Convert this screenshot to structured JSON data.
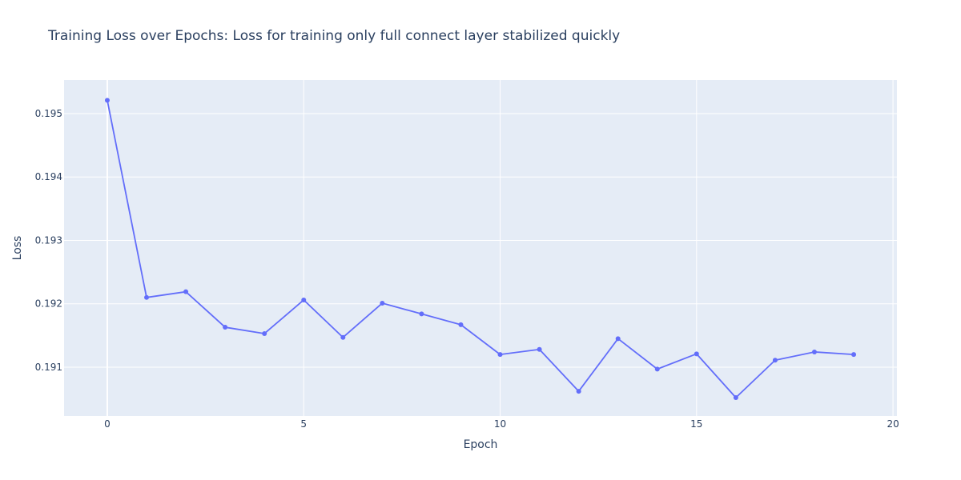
{
  "chart_data": {
    "type": "line",
    "title": "Training Loss over Epochs: Loss for training only full connect layer stabilized quickly",
    "xlabel": "Epoch",
    "ylabel": "Loss",
    "x": [
      0,
      1,
      2,
      3,
      4,
      5,
      6,
      7,
      8,
      9,
      10,
      11,
      12,
      13,
      14,
      15,
      16,
      17,
      18,
      19
    ],
    "series": [
      {
        "values": [
          0.19521,
          0.1921,
          0.19219,
          0.19163,
          0.19153,
          0.19206,
          0.19147,
          0.19201,
          0.19184,
          0.19167,
          0.1912,
          0.19128,
          0.19062,
          0.19145,
          0.19097,
          0.19121,
          0.19052,
          0.19111,
          0.19124,
          0.1912
        ],
        "color": "#636efa"
      }
    ],
    "xlim": [
      -1.1,
      20.1
    ],
    "ylim": [
      0.19023,
      0.19553
    ],
    "xticks": [
      0,
      5,
      10,
      15,
      20
    ],
    "xtick_labels": [
      "0",
      "5",
      "10",
      "15",
      "20"
    ],
    "yticks": [
      0.191,
      0.192,
      0.193,
      0.194,
      0.195
    ],
    "ytick_labels": [
      "0.191",
      "0.192",
      "0.193",
      "0.194",
      "0.195"
    ],
    "grid": true,
    "legend": "none",
    "colors": {
      "plot_background": "#e5ecf6",
      "gridline": "#ffffff",
      "text": "#2a3f5f"
    }
  }
}
